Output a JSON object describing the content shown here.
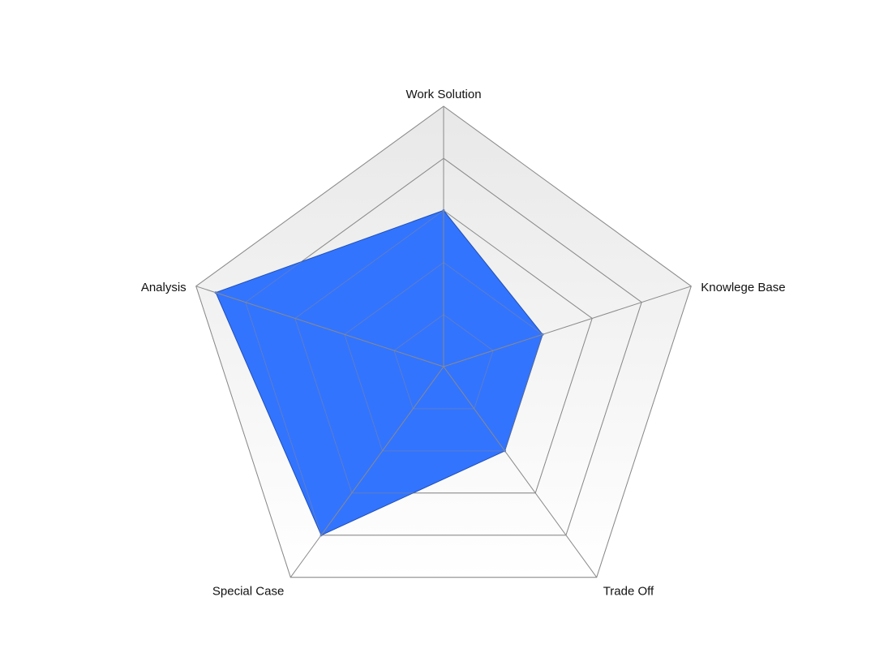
{
  "chart_data": {
    "type": "radar",
    "axes": [
      "Work Solution",
      "Knowlege Base",
      "Trade Off",
      "Special Case",
      "Analysis"
    ],
    "rings": 5,
    "max": 5,
    "grid": true,
    "legend": "none",
    "series": [
      {
        "values": [
          3,
          2,
          2,
          4,
          4.6
        ],
        "color": "#3374ff"
      }
    ],
    "colors": {
      "grid_line": "#8a8a8a",
      "series_edge": "#1f4fb5",
      "bg_top": "#e8e8e8",
      "bg_bottom": "#ffffff"
    }
  }
}
